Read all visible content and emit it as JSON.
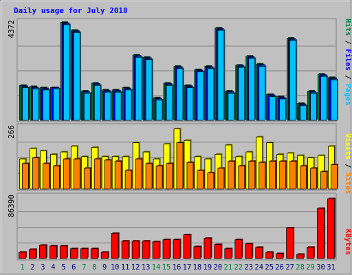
{
  "chart_data": {
    "type": "bar",
    "title": "Daily usage for July 2018",
    "days": [
      "1",
      "2",
      "3",
      "4",
      "5",
      "6",
      "7",
      "8",
      "9",
      "10",
      "11",
      "12",
      "13",
      "14",
      "15",
      "16",
      "17",
      "18",
      "19",
      "20",
      "21",
      "22",
      "23",
      "24",
      "25",
      "26",
      "27",
      "28",
      "29",
      "30",
      "31"
    ],
    "weekend_days": [
      1,
      7,
      8,
      14,
      15,
      21,
      22,
      28,
      29
    ],
    "panels": [
      {
        "name": "hits-files-pages",
        "ymax_label": "4372",
        "ymax": 4400,
        "series": [
          {
            "name": "Hits",
            "color": "#008040",
            "values": [
              1550,
              1500,
              1450,
              1450,
              4350,
              4000,
              1300,
              1650,
              1350,
              1350,
              1450,
              2900,
              2800,
              1000,
              1650,
              2400,
              1550,
              2250,
              2400,
              4100,
              1300,
              2450,
              2850,
              2500,
              1150,
              1050,
              3650,
              750,
              1300,
              2050,
              1900
            ]
          },
          {
            "name": "Files",
            "color": "#0000ff",
            "values": [
              1500,
              1450,
              1400,
              1450,
              4300,
              3950,
              1250,
              1600,
              1300,
              1300,
              1400,
              2850,
              2750,
              950,
              1600,
              2350,
              1500,
              2200,
              2350,
              4050,
              1250,
              2400,
              2800,
              2450,
              1100,
              1000,
              3600,
              700,
              1250,
              2000,
              1850
            ]
          },
          {
            "name": "Pages",
            "color": "#00c0ff",
            "values": [
              1450,
              1400,
              1350,
              1400,
              4250,
              3900,
              1200,
              1550,
              1250,
              1250,
              1350,
              2800,
              2700,
              900,
              1550,
              2300,
              1450,
              2150,
              2300,
              4000,
              1200,
              2350,
              2750,
              2400,
              1050,
              950,
              3550,
              650,
              1200,
              1950,
              1800
            ]
          }
        ]
      },
      {
        "name": "visits-sites",
        "ymax_label": "266",
        "ymax": 270,
        "series": [
          {
            "name": "Visits",
            "color": "#ffff00",
            "values": [
              130,
              175,
              165,
              150,
              160,
              185,
              140,
              180,
              140,
              140,
              140,
              200,
              160,
              130,
              195,
              260,
              210,
              140,
              130,
              150,
              190,
              140,
              160,
              225,
              200,
              150,
              155,
              145,
              135,
              145,
              185
            ]
          },
          {
            "name": "Sites",
            "color": "#ff8000",
            "values": [
              110,
              135,
              110,
              100,
              130,
              130,
              90,
              130,
              125,
              120,
              80,
              130,
              110,
              100,
              110,
              200,
              115,
              80,
              70,
              90,
              120,
              100,
              120,
              115,
              120,
              120,
              120,
              100,
              90,
              75,
              105
            ]
          }
        ]
      },
      {
        "name": "kbytes",
        "ymax_label": "86390",
        "ymax": 90000,
        "series": [
          {
            "name": "KBytes",
            "color": "#ff0000",
            "values": [
              9000,
              13000,
              19000,
              18000,
              18000,
              14000,
              14000,
              14000,
              9000,
              36000,
              25000,
              25000,
              25000,
              24000,
              27000,
              27000,
              34000,
              17000,
              29000,
              20000,
              14000,
              27000,
              21000,
              16000,
              9000,
              7000,
              44000,
              6000,
              16000,
              72000,
              86000
            ]
          }
        ]
      }
    ]
  }
}
